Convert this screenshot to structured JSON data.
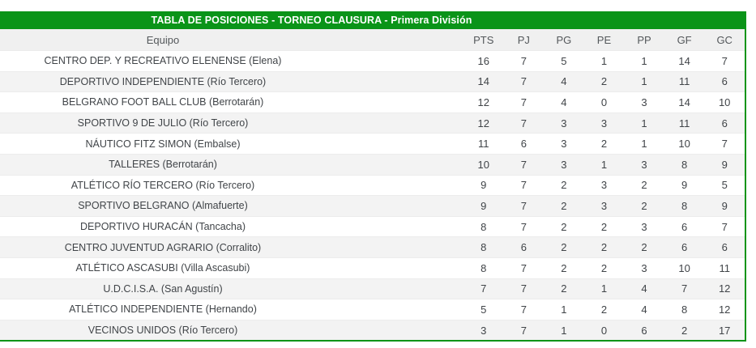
{
  "title_bar": {
    "text": "TABLA DE POSICIONES - TORNEO CLAUSURA - Primera División"
  },
  "colors": {
    "accent_green": "#0a9418",
    "header_row_bg": "#f0f0f0",
    "row_alt_bg": "#f3f3f3",
    "row_bg": "#ffffff",
    "title_text": "#ffffff",
    "body_text": "#404448",
    "header_text": "#54585b"
  },
  "table": {
    "columns": [
      "Equipo",
      "PTS",
      "PJ",
      "PG",
      "PE",
      "PP",
      "GF",
      "GC"
    ],
    "rows": [
      {
        "team": "CENTRO DEP. Y RECREATIVO ELENENSE (Elena)",
        "stats": [
          16,
          7,
          5,
          1,
          1,
          14,
          7
        ]
      },
      {
        "team": "DEPORTIVO INDEPENDIENTE (Río Tercero)",
        "stats": [
          14,
          7,
          4,
          2,
          1,
          11,
          6
        ]
      },
      {
        "team": "BELGRANO FOOT BALL CLUB (Berrotarán)",
        "stats": [
          12,
          7,
          4,
          0,
          3,
          14,
          10
        ]
      },
      {
        "team": "SPORTIVO 9 DE JULIO (Río Tercero)",
        "stats": [
          12,
          7,
          3,
          3,
          1,
          11,
          6
        ]
      },
      {
        "team": "NÁUTICO FITZ SIMON (Embalse)",
        "stats": [
          11,
          6,
          3,
          2,
          1,
          10,
          7
        ]
      },
      {
        "team": "TALLERES (Berrotarán)",
        "stats": [
          10,
          7,
          3,
          1,
          3,
          8,
          9
        ]
      },
      {
        "team": "ATLÉTICO RÍO TERCERO (Río Tercero)",
        "stats": [
          9,
          7,
          2,
          3,
          2,
          9,
          5
        ]
      },
      {
        "team": "SPORTIVO BELGRANO (Almafuerte)",
        "stats": [
          9,
          7,
          2,
          3,
          2,
          8,
          9
        ]
      },
      {
        "team": "DEPORTIVO HURACÁN (Tancacha)",
        "stats": [
          8,
          7,
          2,
          2,
          3,
          6,
          7
        ]
      },
      {
        "team": "CENTRO JUVENTUD AGRARIO (Corralito)",
        "stats": [
          8,
          6,
          2,
          2,
          2,
          6,
          6
        ]
      },
      {
        "team": "ATLÉTICO ASCASUBI (Villa Ascasubi)",
        "stats": [
          8,
          7,
          2,
          2,
          3,
          10,
          11
        ]
      },
      {
        "team": "U.D.C.I.S.A. (San Agustín)",
        "stats": [
          7,
          7,
          2,
          1,
          4,
          7,
          12
        ]
      },
      {
        "team": "ATLÉTICO INDEPENDIENTE (Hernando)",
        "stats": [
          5,
          7,
          1,
          2,
          4,
          8,
          12
        ]
      },
      {
        "team": "VECINOS UNIDOS (Río Tercero)",
        "stats": [
          3,
          7,
          1,
          0,
          6,
          2,
          17
        ]
      }
    ]
  }
}
